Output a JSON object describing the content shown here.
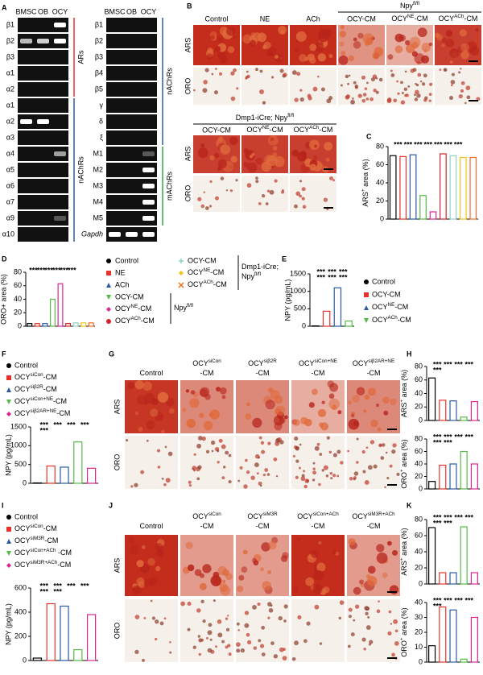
{
  "panel_labels": [
    "A",
    "B",
    "C",
    "D",
    "E",
    "F",
    "G",
    "H",
    "I",
    "J",
    "K"
  ],
  "gel": {
    "lanes": [
      "BMSC",
      "OB",
      "OCY"
    ],
    "left_rows": [
      "β1",
      "β2",
      "β3",
      "α1",
      "α2",
      "α1",
      "α2",
      "α3",
      "α4",
      "α5",
      "α6",
      "α7",
      "α9",
      "α10"
    ],
    "left_groups": [
      "ARs",
      "nAChRs"
    ],
    "right_rows": [
      "β1",
      "β2",
      "β3",
      "β4",
      "β5",
      "γ",
      "δ",
      "ξ",
      "M1",
      "M2",
      "M3",
      "M4",
      "M5",
      "Gapdh"
    ],
    "right_groups": [
      "nAChRs",
      "mAChRs"
    ]
  },
  "panel_b": {
    "group": [
      "Npy",
      "fl/fl"
    ],
    "rows": [
      "ARS",
      "ORO"
    ],
    "columns": [
      "Control",
      "NE",
      "ACh",
      "OCY-CM",
      [
        "OCY",
        "NE",
        "-CM"
      ],
      [
        "OCY",
        "ACh",
        "-CM"
      ]
    ],
    "ko_group": [
      "Dmp1-iCre; Npy",
      "fl/fl"
    ],
    "ko_rows": [
      "ARS",
      "ORO"
    ],
    "ko_columns": [
      "OCY-CM",
      [
        "OCY",
        "NE",
        "-CM"
      ],
      [
        "OCY",
        "ACh",
        "-CM"
      ]
    ]
  },
  "panel_g": {
    "rows": [
      "ARS",
      "ORO"
    ],
    "columns": [
      [
        [
          "Control"
        ]
      ],
      [
        [
          "OCY",
          "siCon"
        ],
        [
          "-CM"
        ]
      ],
      [
        [
          "OCY",
          "siβ2R"
        ],
        [
          "-CM"
        ]
      ],
      [
        [
          "OCY",
          "siCon+NE"
        ],
        [
          "-CM"
        ]
      ],
      [
        [
          "OCY",
          "siβ2AR+NE"
        ],
        [
          "-CM"
        ]
      ]
    ]
  },
  "panel_j": {
    "rows": [
      "ARS",
      "ORO"
    ],
    "columns": [
      [
        [
          "Control"
        ]
      ],
      [
        [
          "OCY",
          "siCon"
        ],
        [
          "-CM"
        ]
      ],
      [
        [
          "OCY",
          "siM3R"
        ],
        [
          "-CM"
        ]
      ],
      [
        [
          "OCY",
          "siCon+ACh"
        ],
        [
          "-CM"
        ]
      ],
      [
        [
          "OCY",
          "siM3R+ACh"
        ],
        [
          "-CM"
        ]
      ]
    ]
  },
  "chart_data": [
    {
      "type": "bar",
      "ylabel": [
        "ARS",
        "+",
        " area (%)"
      ],
      "values": [
        70,
        69,
        71,
        26,
        8,
        72,
        70,
        68,
        68
      ],
      "colors": [
        "#000000",
        "#e8312a",
        "#2b59a8",
        "#57b947",
        "#e0248f",
        "#d2232a",
        "#8dd3c7",
        "#f2c31a",
        "#f26c21"
      ],
      "ylim": [
        0,
        80
      ],
      "yticks": [
        0,
        20,
        40,
        60,
        80
      ],
      "annotations": [
        "***",
        "***",
        "***",
        "***",
        "***",
        "***",
        "***"
      ]
    },
    {
      "type": "bar",
      "ylabel": "ORO+ area (%)",
      "values": [
        4,
        4,
        4,
        40,
        63,
        4,
        5,
        5,
        5
      ],
      "categories": [
        "Control",
        "NE",
        "ACh",
        "OCY-CM",
        [
          "OCY",
          "NE",
          "-CM"
        ],
        [
          "OCY",
          "ACh",
          "-CM"
        ],
        "OCY-CM",
        [
          "OCY",
          "NE",
          "-CM"
        ],
        [
          "OCY",
          "ACh",
          "-CM"
        ]
      ],
      "colors": [
        "#000000",
        "#e8312a",
        "#2b59a8",
        "#57b947",
        "#e0248f",
        "#d2232a",
        "#8dd3c7",
        "#f2c31a",
        "#f26c21"
      ],
      "markers": [
        "circle",
        "square",
        "triangle",
        "triangle-down",
        "diamond",
        "circle",
        "plus",
        "diamond",
        "cross"
      ],
      "legend_groups": [
        [
          [
            "Npy",
            "fl/fl"
          ]
        ],
        [
          [
            "Dmp1-iCre;"
          ],
          [
            "Npy",
            "fl/fl"
          ]
        ]
      ],
      "ylim": [
        0,
        80
      ],
      "yticks": [
        0,
        20,
        40,
        60,
        80
      ],
      "annotations": [
        "***",
        "***",
        "***",
        "***",
        "***",
        "***"
      ]
    },
    {
      "type": "bar",
      "ylabel": "NPY (pg/mL)",
      "values": [
        10,
        430,
        1100,
        150
      ],
      "categories": [
        "Control",
        "OCY-CM",
        [
          "OCY",
          "NE",
          "-CM"
        ],
        [
          "OCY",
          "ACh",
          "-CM"
        ]
      ],
      "colors": [
        "#000000",
        "#e8312a",
        "#2b59a8",
        "#57b947"
      ],
      "markers": [
        "circle",
        "square",
        "triangle",
        "triangle-down"
      ],
      "legend": true,
      "ylim": [
        0,
        1500
      ],
      "yticks": [
        0,
        500,
        1000,
        1500
      ],
      "annotations": [
        "***",
        "***",
        "***",
        "***",
        "***",
        "***"
      ]
    },
    {
      "type": "bar",
      "ylabel": "NPY (pg/mL)",
      "values": [
        10,
        460,
        430,
        1100,
        400
      ],
      "categories": [
        "Control",
        [
          "OCY",
          "siCon",
          "-CM"
        ],
        [
          "OCY",
          "siβ2R",
          "-CM"
        ],
        [
          "OCY",
          "siCon+NE",
          "-CM"
        ],
        [
          "OCY",
          "siβ2AR+NE",
          "-CM"
        ]
      ],
      "colors": [
        "#000000",
        "#e8312a",
        "#2b59a8",
        "#57b947",
        "#e0248f"
      ],
      "markers": [
        "circle",
        "square",
        "triangle",
        "triangle-down",
        "diamond"
      ],
      "legend": true,
      "ylim": [
        0,
        1500
      ],
      "yticks": [
        0,
        500,
        1000,
        1500
      ],
      "annotations": [
        "***",
        "***",
        "***",
        "***",
        "***"
      ]
    },
    {
      "type": "bar",
      "ylabel": [
        "ARS",
        "+",
        " area (%)"
      ],
      "values": [
        63,
        30,
        29,
        5,
        28
      ],
      "colors": [
        "#000000",
        "#e8312a",
        "#2b59a8",
        "#57b947",
        "#e0248f"
      ],
      "ylim": [
        0,
        80
      ],
      "yticks": [
        0,
        20,
        40,
        60,
        80
      ],
      "annotations": [
        "***",
        "***",
        "***",
        "***",
        "***"
      ]
    },
    {
      "type": "bar",
      "ylabel": [
        "ORO",
        "+",
        " area (%)"
      ],
      "values": [
        12,
        38,
        40,
        60,
        40
      ],
      "colors": [
        "#000000",
        "#e8312a",
        "#2b59a8",
        "#57b947",
        "#e0248f"
      ],
      "ylim": [
        0,
        80
      ],
      "yticks": [
        0,
        20,
        40,
        60,
        80
      ],
      "annotations": [
        "***",
        "***",
        "***",
        "***",
        "***",
        "***"
      ]
    },
    {
      "type": "bar",
      "ylabel": "NPY (pg/mL)",
      "values": [
        20,
        470,
        450,
        90,
        380
      ],
      "categories": [
        "Control",
        [
          "OCY",
          "siCon",
          "-CM"
        ],
        [
          "OCY",
          "siM3R",
          "-CM"
        ],
        [
          "OCY",
          "siCon+ACh",
          " -CM"
        ],
        [
          "OCY",
          "siM3R+ACh",
          "-CM"
        ]
      ],
      "colors": [
        "#000000",
        "#e8312a",
        "#2b59a8",
        "#57b947",
        "#e0248f"
      ],
      "markers": [
        "circle",
        "square",
        "triangle",
        "triangle-down",
        "diamond"
      ],
      "legend": true,
      "ylim": [
        0,
        600
      ],
      "yticks": [
        0,
        200,
        400,
        600
      ],
      "annotations": [
        "***",
        "***",
        "***",
        "***",
        "***",
        "***"
      ]
    },
    {
      "type": "bar",
      "ylabel": [
        "ARS",
        "+",
        " area (%)"
      ],
      "values": [
        70,
        14,
        14,
        71,
        14
      ],
      "colors": [
        "#000000",
        "#e8312a",
        "#2b59a8",
        "#57b947",
        "#e0248f"
      ],
      "ylim": [
        0,
        80
      ],
      "yticks": [
        0,
        20,
        40,
        60,
        80
      ],
      "annotations": [
        "***",
        "***",
        "***",
        "***",
        "***",
        "***"
      ]
    },
    {
      "type": "bar",
      "ylabel": [
        "ORO",
        "+",
        " area (%)"
      ],
      "values": [
        11,
        37,
        35,
        2,
        30
      ],
      "colors": [
        "#000000",
        "#e8312a",
        "#2b59a8",
        "#57b947",
        "#e0248f"
      ],
      "ylim": [
        0,
        40
      ],
      "yticks": [
        0,
        10,
        20,
        30,
        40
      ],
      "annotations": [
        "***",
        "***",
        "***",
        "***",
        "***"
      ]
    }
  ]
}
